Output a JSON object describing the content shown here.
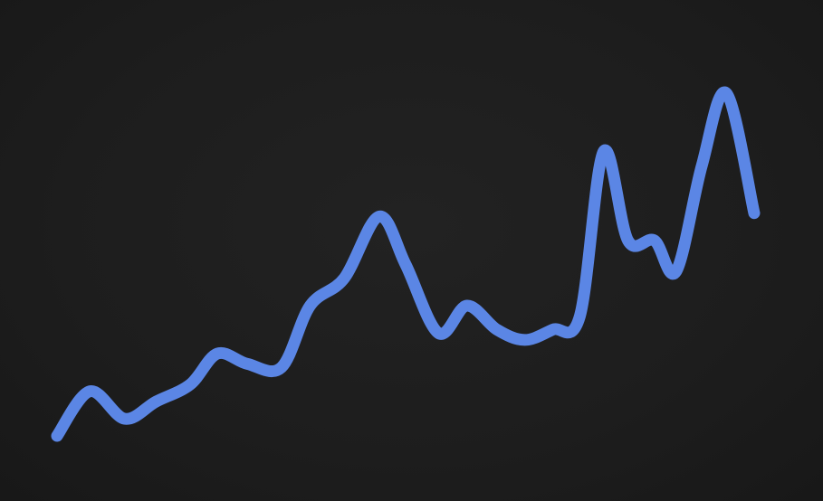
{
  "chart_data": {
    "type": "line",
    "title": "",
    "xlabel": "",
    "ylabel": "",
    "grid": false,
    "axes_visible": false,
    "line_color": "#5b86e5",
    "background_color": "#1c1c1c",
    "xlim": [
      0,
      100
    ],
    "ylim": [
      0,
      100
    ],
    "series": [
      {
        "x": [
          0,
          4.7,
          9.7,
          14.2,
          19.1,
          23.0,
          27.3,
          32.2,
          36.3,
          41.2,
          46.2,
          50.0,
          54.7,
          58.8,
          63.1,
          67.1,
          71.1,
          75.0,
          78.4,
          81.9,
          85.7,
          88.8,
          92.5,
          96.0,
          100
        ],
        "values": [
          0,
          13,
          5,
          10,
          15,
          24,
          21,
          20,
          38,
          46,
          64,
          50,
          30,
          38,
          31,
          28,
          31,
          35,
          83,
          57,
          57,
          48,
          79,
          100,
          65
        ]
      }
    ]
  }
}
